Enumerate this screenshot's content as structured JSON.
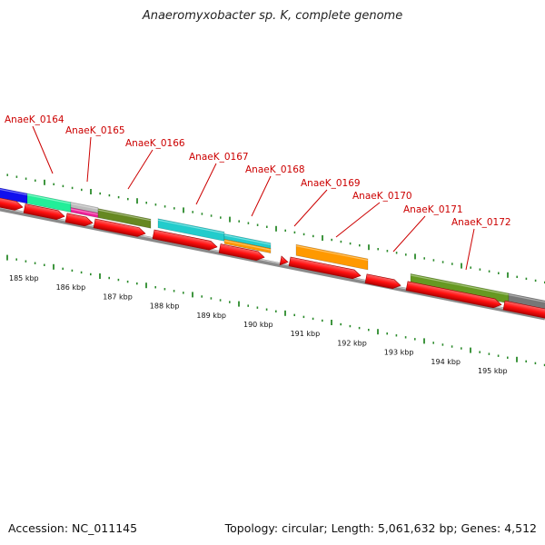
{
  "title": "Anaeromyxobacter sp. K, complete genome",
  "footer": {
    "accession": "Accession: NC_011145",
    "topology": "Topology: circular; Length: 5,061,632 bp; Genes: 4,512"
  },
  "colors": {
    "backbone": "#888888",
    "forward_gene": "#ff1414",
    "ticks": "#2a8a2a",
    "label": "#cc0000"
  },
  "scale_labels": [
    "185 kbp",
    "186 kbp",
    "187 kbp",
    "188 kbp",
    "189 kbp",
    "190 kbp",
    "191 kbp",
    "192 kbp",
    "193 kbp",
    "194 kbp",
    "195 kbp"
  ],
  "gene_labels": [
    "AnaeK_0164",
    "AnaeK_0165",
    "AnaeK_0166",
    "AnaeK_0167",
    "AnaeK_0168",
    "AnaeK_0169",
    "AnaeK_0170",
    "AnaeK_0171",
    "AnaeK_0172"
  ],
  "feature_colors": [
    "#1010ee",
    "#22ee99",
    "#bbbbbb",
    "#ee2299",
    "#668822",
    "#22cccc",
    "#22cccc",
    "#ff9900",
    "#669922",
    "#777777"
  ]
}
